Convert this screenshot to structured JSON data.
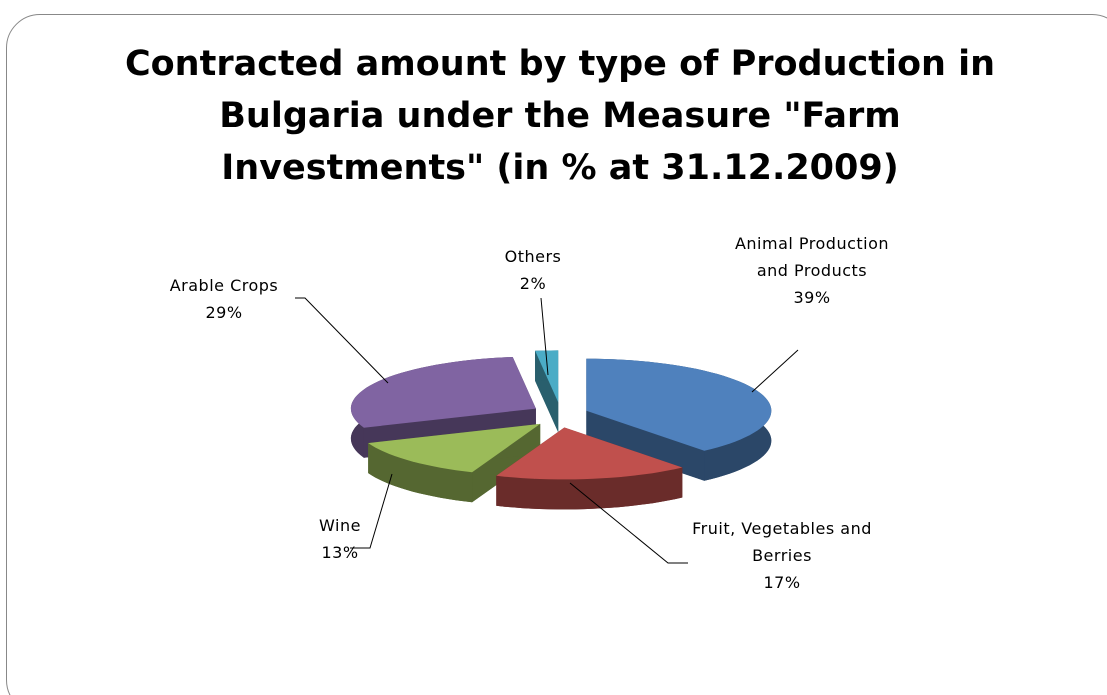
{
  "chart_data": {
    "type": "pie3d",
    "title": "Contracted amount by type of Production in Bulgaria under the Measure \"Farm Investments\" (in % at 31.12.2009)",
    "categories": [
      "Animal Production and Products",
      "Fruit, Vegetables and Berries",
      "Wine",
      "Arable Crops",
      "Others"
    ],
    "values": [
      39,
      17,
      13,
      29,
      2
    ],
    "value_labels": [
      "39%",
      "17%",
      "13%",
      "29%",
      "2%"
    ],
    "colors": [
      "#4f81bd",
      "#c0504d",
      "#9bbb59",
      "#8064a2",
      "#4bacc6"
    ]
  }
}
